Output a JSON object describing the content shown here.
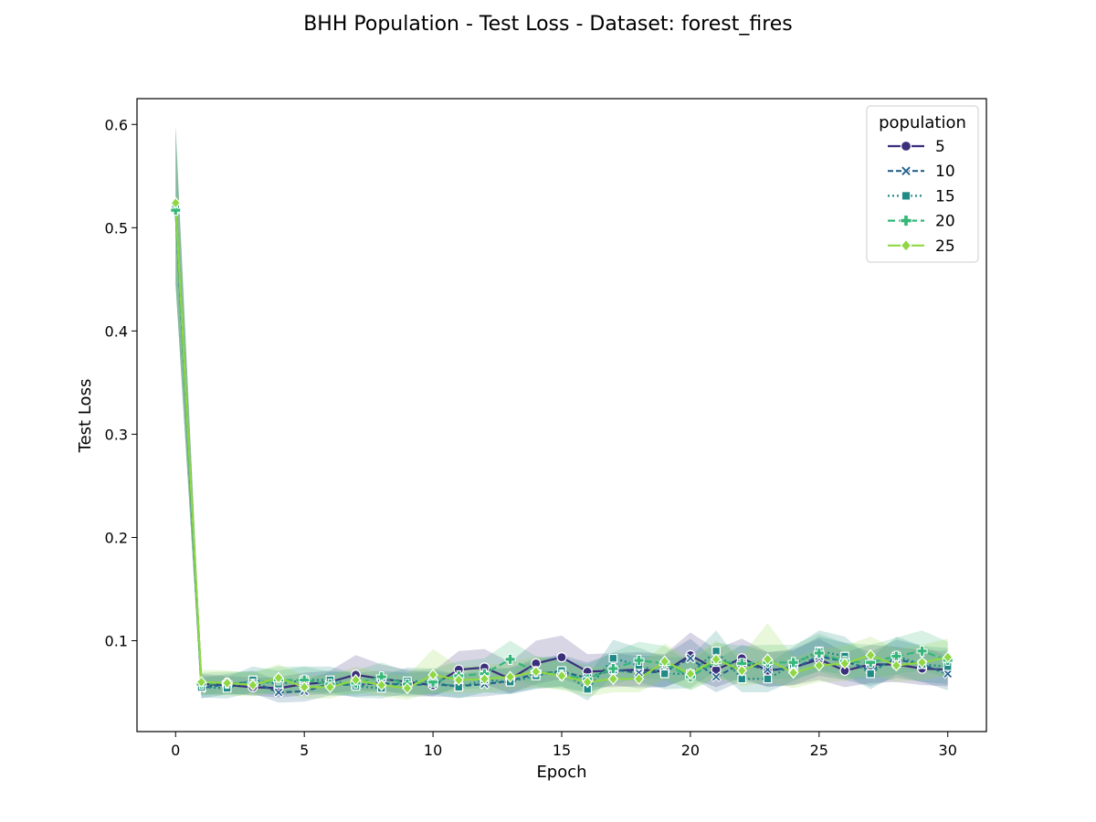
{
  "chart_data": {
    "type": "line",
    "title": "BHH Population - Test Loss - Dataset: forest_fires",
    "xlabel": "Epoch",
    "ylabel": "Test Loss",
    "xlim": [
      -1.5,
      31.5
    ],
    "ylim": [
      0.012,
      0.625
    ],
    "xticks": [
      0,
      5,
      10,
      15,
      20,
      25,
      30
    ],
    "yticks": [
      0.1,
      0.2,
      0.3,
      0.4,
      0.5,
      0.6
    ],
    "ytick_labels": [
      "0.1",
      "0.2",
      "0.3",
      "0.4",
      "0.5",
      "0.6"
    ],
    "grid": false,
    "legend": {
      "title": "population",
      "placement": "top-right"
    },
    "x": [
      0,
      1,
      2,
      3,
      4,
      5,
      6,
      7,
      8,
      9,
      10,
      11,
      12,
      13,
      14,
      15,
      16,
      17,
      18,
      19,
      20,
      21,
      22,
      23,
      24,
      25,
      26,
      27,
      28,
      29,
      30
    ],
    "series": [
      {
        "name": "5",
        "color": "#3b2f7b",
        "marker": "circle",
        "dash": "solid",
        "values": [
          0.522,
          0.058,
          0.057,
          0.055,
          0.054,
          0.058,
          0.06,
          0.067,
          0.063,
          0.06,
          0.057,
          0.072,
          0.074,
          0.063,
          0.078,
          0.084,
          0.07,
          0.071,
          0.072,
          0.07,
          0.086,
          0.072,
          0.083,
          0.071,
          0.074,
          0.082,
          0.071,
          0.077,
          0.077,
          0.073,
          0.072
        ],
        "ci": [
          [
            0.445,
            0.6
          ],
          [
            0.048,
            0.068
          ],
          [
            0.049,
            0.066
          ],
          [
            0.047,
            0.064
          ],
          [
            0.045,
            0.065
          ],
          [
            0.047,
            0.069
          ],
          [
            0.049,
            0.071
          ],
          [
            0.052,
            0.086
          ],
          [
            0.051,
            0.077
          ],
          [
            0.049,
            0.072
          ],
          [
            0.046,
            0.07
          ],
          [
            0.056,
            0.09
          ],
          [
            0.058,
            0.092
          ],
          [
            0.049,
            0.079
          ],
          [
            0.058,
            0.1
          ],
          [
            0.063,
            0.105
          ],
          [
            0.055,
            0.087
          ],
          [
            0.055,
            0.088
          ],
          [
            0.056,
            0.089
          ],
          [
            0.055,
            0.087
          ],
          [
            0.064,
            0.108
          ],
          [
            0.055,
            0.092
          ],
          [
            0.064,
            0.102
          ],
          [
            0.055,
            0.089
          ],
          [
            0.057,
            0.092
          ],
          [
            0.062,
            0.102
          ],
          [
            0.055,
            0.089
          ],
          [
            0.059,
            0.096
          ],
          [
            0.06,
            0.094
          ],
          [
            0.057,
            0.091
          ],
          [
            0.056,
            0.09
          ]
        ]
      },
      {
        "name": "10",
        "color": "#25628e",
        "marker": "x",
        "dash": "6,3",
        "values": [
          0.518,
          0.054,
          0.058,
          0.06,
          0.05,
          0.051,
          0.058,
          0.057,
          0.059,
          0.057,
          0.058,
          0.056,
          0.058,
          0.061,
          0.068,
          0.07,
          0.064,
          0.072,
          0.069,
          0.07,
          0.083,
          0.065,
          0.078,
          0.072,
          0.073,
          0.085,
          0.08,
          0.072,
          0.082,
          0.077,
          0.068
        ],
        "ci": [
          [
            0.445,
            0.595
          ],
          [
            0.044,
            0.064
          ],
          [
            0.048,
            0.068
          ],
          [
            0.049,
            0.071
          ],
          [
            0.04,
            0.061
          ],
          [
            0.041,
            0.062
          ],
          [
            0.047,
            0.07
          ],
          [
            0.046,
            0.069
          ],
          [
            0.047,
            0.071
          ],
          [
            0.046,
            0.069
          ],
          [
            0.046,
            0.07
          ],
          [
            0.045,
            0.068
          ],
          [
            0.046,
            0.07
          ],
          [
            0.049,
            0.074
          ],
          [
            0.054,
            0.083
          ],
          [
            0.055,
            0.086
          ],
          [
            0.05,
            0.079
          ],
          [
            0.057,
            0.088
          ],
          [
            0.054,
            0.085
          ],
          [
            0.055,
            0.086
          ],
          [
            0.065,
            0.102
          ],
          [
            0.05,
            0.081
          ],
          [
            0.061,
            0.096
          ],
          [
            0.056,
            0.089
          ],
          [
            0.057,
            0.09
          ],
          [
            0.066,
            0.104
          ],
          [
            0.062,
            0.098
          ],
          [
            0.056,
            0.089
          ],
          [
            0.064,
            0.101
          ],
          [
            0.06,
            0.095
          ],
          [
            0.052,
            0.085
          ]
        ]
      },
      {
        "name": "15",
        "color": "#1f8a86",
        "marker": "square",
        "dash": "2,3",
        "values": [
          0.52,
          0.055,
          0.054,
          0.062,
          0.058,
          0.062,
          0.062,
          0.056,
          0.054,
          0.061,
          0.06,
          0.055,
          0.062,
          0.06,
          0.066,
          0.071,
          0.053,
          0.083,
          0.076,
          0.068,
          0.068,
          0.09,
          0.063,
          0.063,
          0.077,
          0.09,
          0.085,
          0.068,
          0.085,
          0.077,
          0.075
        ],
        "ci": [
          [
            0.445,
            0.597
          ],
          [
            0.045,
            0.066
          ],
          [
            0.044,
            0.065
          ],
          [
            0.05,
            0.075
          ],
          [
            0.047,
            0.071
          ],
          [
            0.05,
            0.075
          ],
          [
            0.05,
            0.075
          ],
          [
            0.045,
            0.068
          ],
          [
            0.044,
            0.066
          ],
          [
            0.049,
            0.074
          ],
          [
            0.048,
            0.073
          ],
          [
            0.044,
            0.067
          ],
          [
            0.05,
            0.075
          ],
          [
            0.048,
            0.073
          ],
          [
            0.053,
            0.081
          ],
          [
            0.056,
            0.087
          ],
          [
            0.042,
            0.065
          ],
          [
            0.066,
            0.101
          ],
          [
            0.06,
            0.093
          ],
          [
            0.053,
            0.084
          ],
          [
            0.054,
            0.084
          ],
          [
            0.071,
            0.11
          ],
          [
            0.05,
            0.077
          ],
          [
            0.05,
            0.077
          ],
          [
            0.061,
            0.094
          ],
          [
            0.071,
            0.11
          ],
          [
            0.067,
            0.104
          ],
          [
            0.053,
            0.083
          ],
          [
            0.067,
            0.104
          ],
          [
            0.06,
            0.095
          ],
          [
            0.058,
            0.093
          ]
        ]
      },
      {
        "name": "20",
        "color": "#35b779",
        "marker": "plus",
        "dash": "8,4",
        "values": [
          0.517,
          0.058,
          0.059,
          0.058,
          0.062,
          0.062,
          0.058,
          0.059,
          0.065,
          0.058,
          0.06,
          0.066,
          0.068,
          0.082,
          0.07,
          0.067,
          0.063,
          0.073,
          0.081,
          0.078,
          0.065,
          0.08,
          0.078,
          0.079,
          0.079,
          0.088,
          0.08,
          0.079,
          0.085,
          0.09,
          0.081
        ],
        "ci": [
          [
            0.445,
            0.592
          ],
          [
            0.047,
            0.069
          ],
          [
            0.048,
            0.07
          ],
          [
            0.047,
            0.07
          ],
          [
            0.05,
            0.075
          ],
          [
            0.05,
            0.075
          ],
          [
            0.047,
            0.07
          ],
          [
            0.048,
            0.071
          ],
          [
            0.052,
            0.079
          ],
          [
            0.047,
            0.07
          ],
          [
            0.048,
            0.073
          ],
          [
            0.053,
            0.08
          ],
          [
            0.054,
            0.083
          ],
          [
            0.065,
            0.1
          ],
          [
            0.056,
            0.085
          ],
          [
            0.053,
            0.082
          ],
          [
            0.05,
            0.077
          ],
          [
            0.058,
            0.089
          ],
          [
            0.064,
            0.099
          ],
          [
            0.062,
            0.095
          ],
          [
            0.052,
            0.079
          ],
          [
            0.063,
            0.098
          ],
          [
            0.062,
            0.095
          ],
          [
            0.063,
            0.096
          ],
          [
            0.063,
            0.096
          ],
          [
            0.07,
            0.107
          ],
          [
            0.063,
            0.098
          ],
          [
            0.063,
            0.096
          ],
          [
            0.068,
            0.103
          ],
          [
            0.071,
            0.11
          ],
          [
            0.064,
            0.099
          ]
        ]
      },
      {
        "name": "25",
        "color": "#8fd744",
        "marker": "diamond",
        "dash": "solid",
        "values": [
          0.524,
          0.06,
          0.059,
          0.057,
          0.064,
          0.055,
          0.055,
          0.062,
          0.057,
          0.054,
          0.067,
          0.062,
          0.063,
          0.065,
          0.07,
          0.066,
          0.06,
          0.063,
          0.063,
          0.08,
          0.068,
          0.082,
          0.071,
          0.082,
          0.069,
          0.076,
          0.078,
          0.086,
          0.076,
          0.079,
          0.084
        ],
        "ci": [
          [
            0.445,
            0.598
          ],
          [
            0.048,
            0.072
          ],
          [
            0.047,
            0.071
          ],
          [
            0.046,
            0.069
          ],
          [
            0.051,
            0.077
          ],
          [
            0.044,
            0.066
          ],
          [
            0.044,
            0.066
          ],
          [
            0.05,
            0.075
          ],
          [
            0.046,
            0.069
          ],
          [
            0.043,
            0.066
          ],
          [
            0.05,
            0.092
          ],
          [
            0.049,
            0.075
          ],
          [
            0.05,
            0.076
          ],
          [
            0.052,
            0.079
          ],
          [
            0.055,
            0.085
          ],
          [
            0.052,
            0.08
          ],
          [
            0.046,
            0.074
          ],
          [
            0.05,
            0.076
          ],
          [
            0.05,
            0.076
          ],
          [
            0.063,
            0.097
          ],
          [
            0.053,
            0.083
          ],
          [
            0.064,
            0.1
          ],
          [
            0.056,
            0.086
          ],
          [
            0.06,
            0.117
          ],
          [
            0.054,
            0.084
          ],
          [
            0.06,
            0.092
          ],
          [
            0.061,
            0.095
          ],
          [
            0.068,
            0.104
          ],
          [
            0.06,
            0.092
          ],
          [
            0.062,
            0.096
          ],
          [
            0.066,
            0.102
          ]
        ]
      }
    ]
  }
}
